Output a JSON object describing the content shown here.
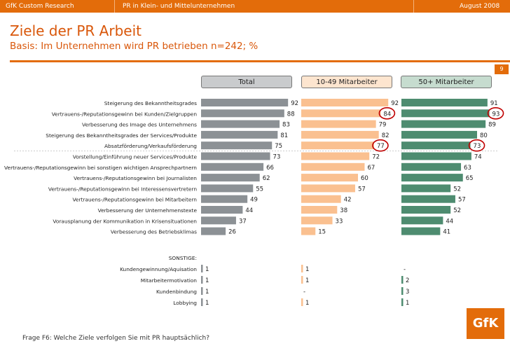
{
  "header": {
    "source": "GfK Custom Research",
    "topic": "PR in Klein- und Mittelunternehmen",
    "date": "August 2008",
    "page": "9"
  },
  "title": "Ziele der PR Arbeit",
  "subtitle": "Basis: Im Unternehmen wird PR betrieben n=242; %",
  "footer": "Frage F6: Welche Ziele verfolgen Sie mit PR hauptsächlich?",
  "logo_text": "GfK",
  "colors": {
    "total": "#8c9195",
    "small": "#fac090",
    "large": "#4e8c70",
    "accent": "#e36c0a",
    "circle": "#c00000"
  },
  "chart_data": {
    "type": "bar",
    "orientation": "horizontal",
    "unit": "%",
    "categories": [
      "Steigerung des Bekanntheitsgrades",
      "Vertrauens-/Reputationsgewinn bei Kunden/Zielgruppen",
      "Verbesserung des Image des Unternehmens",
      "Steigerung des Bekanntheitsgrades der Services/Produkte",
      "Absatzförderung/Verkaufsförderung",
      "Vorstellung/Einführung neuer Services/Produkte",
      "Vertrauens-/Reputationsgewinn bei sonstigen wichtigen Ansprechpartnern",
      "Vertrauens-/Reputationsgewinn bei Journalisten",
      "Vertrauens-/Reputationsgewinn bei Interessensvertretern",
      "Vertrauens-/Reputationsgewinn bei Mitarbeitern",
      "Verbesserung der Unternehmenstexte",
      "Vorausplanung der Kommunikation in Krisensituationen",
      "Verbesserung des Betriebsklimas"
    ],
    "series": [
      {
        "name": "Total",
        "values": [
          92,
          88,
          83,
          81,
          75,
          73,
          66,
          62,
          55,
          49,
          44,
          37,
          26
        ]
      },
      {
        "name": "10-49 Mitarbeiter",
        "values": [
          92,
          84,
          79,
          82,
          77,
          72,
          67,
          60,
          57,
          42,
          38,
          33,
          15
        ]
      },
      {
        "name": "50+ Mitarbeiter",
        "values": [
          91,
          93,
          89,
          80,
          73,
          74,
          63,
          65,
          52,
          57,
          52,
          44,
          41
        ]
      }
    ],
    "highlighted": [
      {
        "series": 1,
        "index": 1
      },
      {
        "series": 1,
        "index": 4
      },
      {
        "series": 2,
        "index": 1
      },
      {
        "series": 2,
        "index": 4
      }
    ],
    "other_label": "SONSTIGE:",
    "other_categories": [
      "Kundengewinnung/Aquisation",
      "Mitarbeitermotivation",
      "Kundenbindung",
      "Lobbying"
    ],
    "other_values": [
      [
        "1",
        "1",
        "1",
        "1"
      ],
      [
        "1",
        "1",
        "-",
        "1"
      ],
      [
        "-",
        "2",
        "3",
        "1"
      ]
    ]
  }
}
